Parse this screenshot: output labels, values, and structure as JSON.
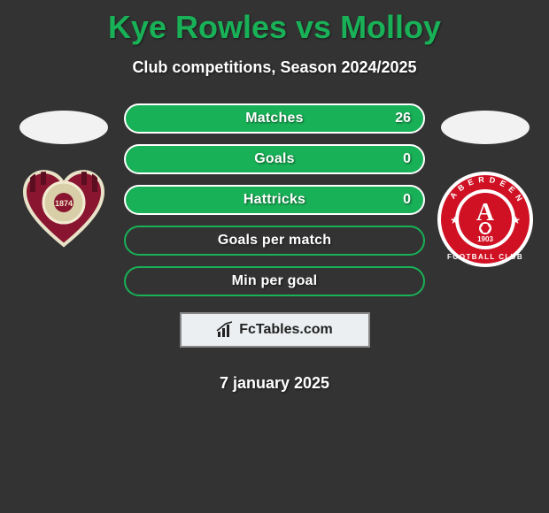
{
  "title": "Kye Rowles vs Molloy",
  "subtitle": "Club competitions, Season 2024/2025",
  "date": "7 january 2025",
  "colors": {
    "accent": "#19b157",
    "page_bg": "#333333",
    "text": "#ffffff",
    "pill_border_solid": "#ffffff",
    "pill_border_hollow": "#19b157",
    "logo_box_border": "#888888",
    "logo_box_bg": "#eceff1"
  },
  "logo": {
    "text": "FcTables.com"
  },
  "stats": [
    {
      "label": "Matches",
      "value_right": "26",
      "style": "solid"
    },
    {
      "label": "Goals",
      "value_right": "0",
      "style": "solid"
    },
    {
      "label": "Hattricks",
      "value_right": "0",
      "style": "solid"
    },
    {
      "label": "Goals per match",
      "value_right": null,
      "style": "hollow"
    },
    {
      "label": "Min per goal",
      "value_right": null,
      "style": "hollow"
    }
  ],
  "players": {
    "left": {
      "name_hint": "Kye Rowles",
      "has_avatar": true,
      "club_badge": "hearts"
    },
    "right": {
      "name_hint": "Molloy",
      "has_avatar": true,
      "club_badge": "aberdeen"
    }
  }
}
